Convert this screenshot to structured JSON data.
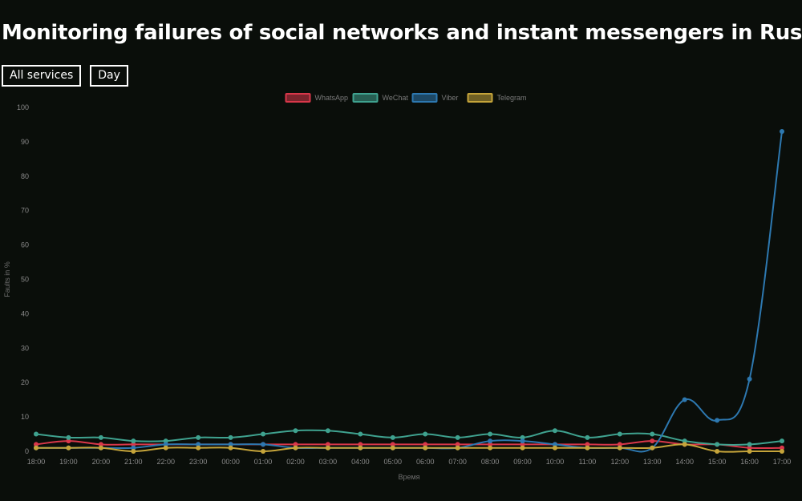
{
  "page": {
    "title": "Monitoring failures of social networks and instant messengers in Russia",
    "filters": {
      "services_label": "All services",
      "period_label": "Day"
    }
  },
  "chart_data": {
    "type": "line",
    "title": "",
    "xlabel": "Время",
    "ylabel": "Faults in %",
    "ylim": [
      0,
      100
    ],
    "yticks": [
      0,
      10,
      20,
      30,
      40,
      50,
      60,
      70,
      80,
      90,
      100
    ],
    "grid": false,
    "legend_position": "top-center",
    "x": [
      "18:00",
      "19:00",
      "20:00",
      "21:00",
      "22:00",
      "23:00",
      "00:00",
      "01:00",
      "02:00",
      "03:00",
      "04:00",
      "05:00",
      "06:00",
      "07:00",
      "08:00",
      "09:00",
      "10:00",
      "11:00",
      "12:00",
      "13:00",
      "14:00",
      "15:00",
      "16:00",
      "17:00"
    ],
    "series": [
      {
        "name": "WhatsApp",
        "color": "#d9374a",
        "values": [
          2,
          3,
          2,
          2,
          2,
          2,
          2,
          2,
          2,
          2,
          2,
          2,
          2,
          2,
          2,
          2,
          2,
          2,
          2,
          3,
          2,
          2,
          1,
          1
        ]
      },
      {
        "name": "WeChat",
        "color": "#3fa28f",
        "values": [
          5,
          4,
          4,
          3,
          3,
          4,
          4,
          5,
          6,
          6,
          5,
          4,
          5,
          4,
          5,
          4,
          6,
          4,
          5,
          5,
          3,
          2,
          2,
          3
        ]
      },
      {
        "name": "Viber",
        "color": "#2d78b0",
        "values": [
          1,
          1,
          1,
          1,
          2,
          2,
          2,
          2,
          1,
          1,
          1,
          1,
          1,
          1,
          3,
          3,
          2,
          1,
          1,
          1,
          15,
          9,
          21,
          93
        ]
      },
      {
        "name": "Telegram",
        "color": "#c5a43a",
        "values": [
          1,
          1,
          1,
          0,
          1,
          1,
          1,
          0,
          1,
          1,
          1,
          1,
          1,
          1,
          1,
          1,
          1,
          1,
          1,
          1,
          2,
          0,
          0,
          0
        ]
      }
    ]
  }
}
